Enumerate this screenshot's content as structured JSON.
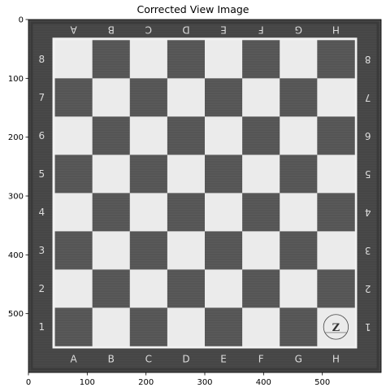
{
  "title": "Corrected View Image",
  "chart_data": {
    "type": "image",
    "title": "Corrected View Image",
    "xlabel": "",
    "ylabel": "",
    "xlim": [
      0,
      600
    ],
    "ylim": [
      600,
      0
    ],
    "x_ticks": [
      0,
      100,
      200,
      300,
      400,
      500
    ],
    "y_ticks": [
      0,
      100,
      200,
      300,
      400,
      500
    ],
    "image": {
      "content": "chessboard photo, grayscale",
      "frame_extent": [
        0,
        600,
        0,
        600
      ],
      "board_extent": [
        45,
        555,
        35,
        555
      ],
      "grid": 8,
      "top_file_labels": [
        "A",
        "B",
        "C",
        "D",
        "E",
        "F",
        "G",
        "H"
      ],
      "bottom_file_labels": [
        "A",
        "B",
        "C",
        "D",
        "E",
        "F",
        "G",
        "H"
      ],
      "left_rank_labels": [
        "8",
        "7",
        "6",
        "5",
        "4",
        "3",
        "2",
        "1"
      ],
      "right_rank_labels": [
        "8",
        "7",
        "6",
        "5",
        "4",
        "3",
        "2",
        "1"
      ],
      "logo": "house of staunton",
      "colors": {
        "frame": "#4a4a4a",
        "dark_square": "#5a5a5a",
        "light_square": "#ebebeb",
        "border_line": "#f2f2f2"
      }
    }
  }
}
